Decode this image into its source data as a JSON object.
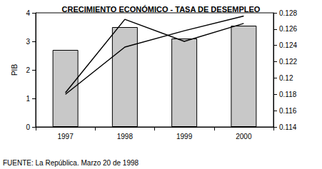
{
  "chart_data": {
    "type": "bar",
    "title": "CRECIMIENTO ECONÓMICO - TASA DE DESEMPLEO",
    "ylabel": "PIB",
    "categories": [
      "1997",
      "1998",
      "1999",
      "2000"
    ],
    "series": [
      {
        "type": "bar",
        "color": "#c8c8c8",
        "values": [
          2.7,
          3.5,
          3.1,
          3.55
        ]
      },
      {
        "type": "line",
        "axis": "y2",
        "color": "#000000",
        "values": [
          0.1182,
          0.1272,
          0.1245,
          0.1267
        ]
      },
      {
        "type": "line",
        "axis": "y2",
        "color": "#000000",
        "values": [
          0.118,
          0.1238,
          0.1258,
          0.1276
        ]
      }
    ],
    "ylim": [
      0,
      4
    ],
    "yticks": [
      0,
      1,
      2,
      3,
      4
    ],
    "y2lim": [
      0.114,
      0.128
    ],
    "y2ticks": [
      0.114,
      0.116,
      0.118,
      0.12,
      0.122,
      0.124,
      0.126,
      0.128
    ],
    "grid": false,
    "annotations": [
      "FUENTE: La República. Marzo 20 de 1998"
    ]
  }
}
